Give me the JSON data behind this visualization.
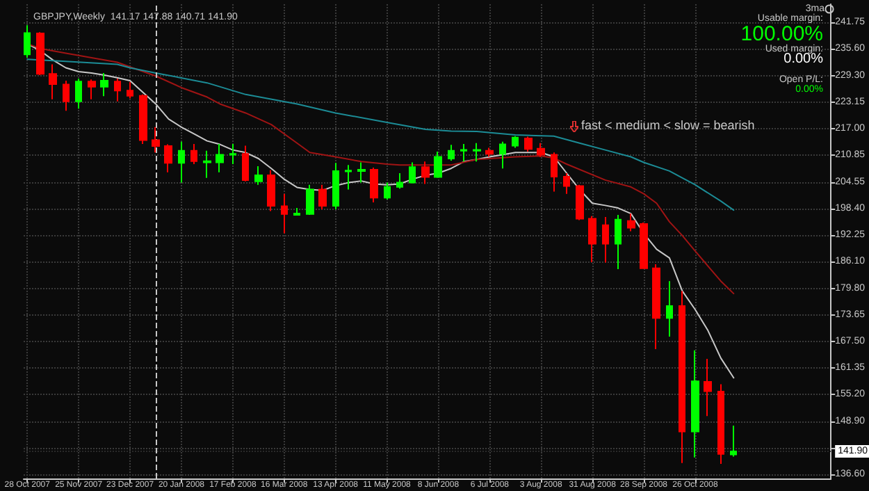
{
  "chart_data": {
    "type": "candlestick",
    "title": "GBPJPY,Weekly  141.17 147.88 140.71 141.90",
    "xlim": [
      "2007-10-26",
      "2009-01-08"
    ],
    "xticks": [
      {
        "value": "2007-10-28",
        "label": "28 Oct 2007"
      },
      {
        "value": "2007-11-25",
        "label": "25 Nov 2007"
      },
      {
        "value": "2007-12-23",
        "label": "23 Dec 2007"
      },
      {
        "value": "2008-01-20",
        "label": "20 Jan 2008"
      },
      {
        "value": "2008-02-17",
        "label": "17 Feb 2008"
      },
      {
        "value": "2008-03-16",
        "label": "16 Mar 2008"
      },
      {
        "value": "2008-04-13",
        "label": "13 Apr 2008"
      },
      {
        "value": "2008-05-11",
        "label": "11 May 2008"
      },
      {
        "value": "2008-06-08",
        "label": "8 Jun 2008"
      },
      {
        "value": "2008-07-06",
        "label": "6 Jul 2008"
      },
      {
        "value": "2008-08-03",
        "label": "3 Aug 2008"
      },
      {
        "value": "2008-08-31",
        "label": "31 Aug 2008"
      },
      {
        "value": "2008-09-28",
        "label": "28 Sep 2008"
      },
      {
        "value": "2008-10-26",
        "label": "26 Oct 2008"
      }
    ],
    "ylim": [
      135.6,
      245.9
    ],
    "yticks": [
      {
        "value": 136.6,
        "label": "136.60"
      },
      {
        "value": 142.75,
        "label": null
      },
      {
        "value": 148.9,
        "label": "148.90"
      },
      {
        "value": 155.2,
        "label": "155.20"
      },
      161.35,
      {
        "value": 167.5,
        "label": "167.50"
      },
      173.65,
      {
        "value": 179.8,
        "label": "179.80"
      },
      {
        "value": 186.1,
        "label": "186.10"
      },
      192.25,
      {
        "value": 198.4,
        "label": "198.40"
      },
      204.55,
      210.85,
      {
        "value": 217,
        "label": "217.00"
      },
      223.15,
      {
        "value": 229.3,
        "label": "229.30"
      },
      {
        "value": 235.6,
        "label": "235.60"
      },
      241.75
    ],
    "grid": true,
    "marker": "none",
    "series": [
      {
        "x": [
          "2007-10-28",
          "2007-11-04",
          "2007-11-11",
          "2007-11-18",
          "2007-11-25",
          "2007-12-02",
          "2007-12-09",
          "2007-12-16",
          "2007-12-23",
          "2007-12-30",
          "2008-01-06",
          "2008-01-13",
          "2008-01-20",
          "2008-01-27",
          "2008-02-03",
          "2008-02-10",
          "2008-02-17",
          "2008-02-24",
          "2008-03-02",
          "2008-03-09",
          "2008-03-16",
          "2008-03-23",
          "2008-03-30",
          "2008-04-06",
          "2008-04-13",
          "2008-04-20",
          "2008-04-27",
          "2008-05-04",
          "2008-05-11",
          "2008-05-18",
          "2008-05-25",
          "2008-06-01",
          "2008-06-08",
          "2008-06-15",
          "2008-06-22",
          "2008-06-29",
          "2008-07-06",
          "2008-07-13",
          "2008-07-20",
          "2008-07-27",
          "2008-08-03",
          "2008-08-10",
          "2008-08-17",
          "2008-08-24",
          "2008-08-31",
          "2008-09-07",
          "2008-09-14",
          "2008-09-21",
          "2008-09-28",
          "2008-10-05",
          "2008-10-12",
          "2008-10-19",
          "2008-10-26",
          "2008-11-02",
          "2008-11-09",
          "2008-11-16"
        ],
        "ohlc": [
          [
            234.2,
            241.0,
            233.5,
            239.2
          ],
          [
            239.1,
            239.4,
            229.4,
            229.7
          ],
          [
            229.7,
            231.9,
            223.8,
            227.3
          ],
          [
            227.2,
            228.1,
            221.1,
            223.3
          ],
          [
            223.3,
            228.6,
            221.6,
            227.9
          ],
          [
            227.9,
            228.4,
            223.8,
            226.7
          ],
          [
            226.7,
            229.9,
            224.5,
            228.1
          ],
          [
            227.9,
            228.6,
            223.3,
            225.8
          ],
          [
            225.8,
            227.8,
            224.0,
            224.6
          ],
          [
            224.6,
            224.9,
            213.4,
            214.3
          ],
          [
            214.3,
            217.3,
            211.4,
            212.9
          ],
          [
            212.9,
            213.3,
            206.8,
            209.0
          ],
          [
            209.0,
            213.9,
            204.4,
            211.8
          ],
          [
            211.8,
            213.4,
            208.7,
            209.4
          ],
          [
            209.1,
            211.8,
            205.5,
            209.4
          ],
          [
            209.1,
            213.4,
            206.8,
            210.9
          ],
          [
            210.9,
            213.4,
            208.7,
            211.1
          ],
          [
            211.1,
            213.0,
            204.7,
            205.0
          ],
          [
            204.7,
            208.2,
            203.9,
            206.1
          ],
          [
            206.1,
            207.3,
            197.8,
            199.0
          ],
          [
            198.9,
            201.8,
            192.6,
            197.1
          ],
          [
            196.9,
            198.5,
            196.8,
            197.2
          ],
          [
            197.1,
            203.9,
            196.9,
            202.8
          ],
          [
            202.8,
            203.9,
            198.2,
            199.0
          ],
          [
            199.0,
            209.0,
            198.2,
            207.1
          ],
          [
            207.0,
            208.5,
            202.8,
            207.2
          ],
          [
            207.1,
            209.1,
            204.4,
            207.4
          ],
          [
            207.4,
            207.9,
            199.8,
            200.9
          ],
          [
            200.9,
            204.4,
            200.5,
            203.4
          ],
          [
            203.4,
            206.6,
            203.0,
            204.4
          ],
          [
            204.4,
            209.1,
            204.2,
            208.0
          ],
          [
            208.0,
            209.3,
            204.1,
            205.7
          ],
          [
            205.7,
            211.6,
            205.5,
            210.4
          ],
          [
            210.0,
            213.2,
            209.5,
            211.8
          ],
          [
            211.8,
            213.4,
            209.3,
            212.0
          ],
          [
            211.8,
            213.6,
            209.3,
            212.0
          ],
          [
            211.8,
            212.5,
            210.4,
            211.1
          ],
          [
            211.1,
            213.9,
            207.7,
            213.3
          ],
          [
            213.0,
            215.2,
            212.5,
            214.9
          ],
          [
            214.7,
            215.1,
            211.6,
            212.2
          ],
          [
            212.3,
            213.6,
            210.4,
            210.9
          ],
          [
            210.9,
            211.4,
            202.3,
            205.8
          ],
          [
            205.8,
            206.6,
            201.8,
            203.6
          ],
          [
            203.6,
            203.9,
            195.7,
            196.0
          ],
          [
            196.0,
            196.6,
            185.9,
            190.2
          ],
          [
            194.5,
            196.4,
            185.8,
            190.2
          ],
          [
            190.2,
            196.9,
            184.3,
            195.8
          ],
          [
            195.5,
            197.2,
            193.1,
            193.9
          ],
          [
            194.8,
            195.1,
            184.5,
            184.5
          ],
          [
            184.5,
            185.4,
            165.7,
            172.9
          ],
          [
            172.9,
            181.5,
            168.6,
            175.7
          ],
          [
            175.7,
            179.2,
            139.2,
            146.5
          ],
          [
            146.5,
            165.4,
            140.5,
            158.2
          ],
          [
            158.1,
            163.4,
            150.1,
            155.9
          ],
          [
            155.8,
            157.5,
            139.0,
            141.3
          ],
          [
            141.17,
            147.88,
            140.71,
            141.9
          ]
        ],
        "colors": [
          "#00ff00",
          "#ff0000",
          "#ff0000",
          "#ff0000",
          "#00ff00",
          "#ff0000",
          "#00ff00",
          "#ff0000",
          "#ff0000",
          "#ff0000",
          "#ff0000",
          "#ff0000",
          "#00ff00",
          "#ff0000",
          "#00ff00",
          "#00ff00",
          "#00ff00",
          "#ff0000",
          "#00ff00",
          "#ff0000",
          "#ff0000",
          "#00ff00",
          "#00ff00",
          "#ff0000",
          "#00ff00",
          "#00ff00",
          "#00ff00",
          "#ff0000",
          "#00ff00",
          "#00ff00",
          "#00ff00",
          "#ff0000",
          "#00ff00",
          "#00ff00",
          "#00ff00",
          "#00ff00",
          "#ff0000",
          "#00ff00",
          "#00ff00",
          "#ff0000",
          "#ff0000",
          "#ff0000",
          "#ff0000",
          "#ff0000",
          "#ff0000",
          "#ff0000",
          "#00ff00",
          "#ff0000",
          "#ff0000",
          "#ff0000",
          "#00ff00",
          "#ff0000",
          "#00ff00",
          "#ff0000",
          "#ff0000",
          "#00ff00"
        ]
      },
      {
        "type": "line",
        "color": "#c8c8c8",
        "x": [
          "2007-10-28",
          "2007-11-04",
          "2007-11-11",
          "2007-11-18",
          "2007-11-25",
          "2007-12-02",
          "2007-12-09",
          "2007-12-16",
          "2007-12-23",
          "2007-12-30",
          "2008-01-06",
          "2008-01-13",
          "2008-01-20",
          "2008-01-27",
          "2008-02-03",
          "2008-02-10",
          "2008-02-17",
          "2008-02-24",
          "2008-03-02",
          "2008-03-09",
          "2008-03-16",
          "2008-03-23",
          "2008-03-30",
          "2008-04-06",
          "2008-04-13",
          "2008-04-20",
          "2008-04-27",
          "2008-05-04",
          "2008-05-11",
          "2008-05-18",
          "2008-05-25",
          "2008-06-01",
          "2008-06-08",
          "2008-06-15",
          "2008-06-22",
          "2008-06-29",
          "2008-07-06",
          "2008-07-13",
          "2008-07-20",
          "2008-07-27",
          "2008-08-03",
          "2008-08-10",
          "2008-08-17",
          "2008-08-24",
          "2008-08-31",
          "2008-09-07",
          "2008-09-14",
          "2008-09-21",
          "2008-09-28",
          "2008-10-05",
          "2008-10-12",
          "2008-10-19",
          "2008-10-26",
          "2008-11-02",
          "2008-11-09",
          "2008-11-16"
        ],
        "values": [
          236.7,
          235.1,
          232.9,
          231.1,
          230.2,
          229.9,
          229.4,
          228.8,
          228.1,
          225.4,
          222.7,
          219.2,
          217.3,
          215.7,
          214.1,
          213.3,
          212.0,
          211.4,
          210.0,
          207.7,
          205.2,
          203.3,
          202.8,
          202.6,
          203.7,
          204.4,
          204.8,
          204.1,
          203.9,
          204.1,
          205.2,
          206.1,
          206.6,
          207.7,
          209.3,
          209.8,
          210.4,
          210.9,
          211.4,
          211.4,
          211.4,
          210.4,
          206.6,
          202.8,
          199.6,
          199.1,
          198.5,
          197.2,
          192.6,
          188.9,
          186.9,
          179.2,
          174.9,
          170.0,
          163.6,
          159.0
        ]
      },
      {
        "type": "line",
        "color": "#a01414",
        "x": [
          "2007-10-28",
          "2007-11-04",
          "2007-11-18",
          "2007-12-16",
          "2007-12-23",
          "2008-01-06",
          "2008-01-20",
          "2008-02-03",
          "2008-02-10",
          "2008-02-24",
          "2008-03-09",
          "2008-03-23",
          "2008-03-30",
          "2008-04-13",
          "2008-04-27",
          "2008-05-11",
          "2008-05-18",
          "2008-06-15",
          "2008-06-29",
          "2008-07-20",
          "2008-08-03",
          "2008-08-10",
          "2008-08-17",
          "2008-09-07",
          "2008-09-21",
          "2008-09-28",
          "2008-10-05",
          "2008-10-12",
          "2008-10-19",
          "2008-10-26",
          "2008-11-02",
          "2008-11-09",
          "2008-11-16"
        ],
        "values": [
          236.7,
          235.6,
          234.5,
          232.4,
          231.3,
          229.2,
          226.5,
          224.3,
          222.7,
          220.6,
          217.9,
          213.6,
          211.4,
          210.4,
          209.3,
          208.7,
          208.5,
          208.5,
          209.8,
          210.4,
          210.6,
          210.1,
          208.7,
          205.0,
          203.4,
          201.8,
          199.6,
          195.3,
          192.1,
          188.5,
          185.0,
          181.5,
          178.6
        ]
      },
      {
        "type": "line",
        "color": "#1c8c96",
        "x": [
          "2007-10-28",
          "2007-11-18",
          "2007-12-16",
          "2007-12-23",
          "2008-01-06",
          "2008-02-03",
          "2008-02-24",
          "2008-03-23",
          "2008-04-13",
          "2008-05-11",
          "2008-06-01",
          "2008-06-15",
          "2008-06-29",
          "2008-07-20",
          "2008-08-10",
          "2008-08-24",
          "2008-09-07",
          "2008-09-21",
          "2008-09-28",
          "2008-10-12",
          "2008-10-26",
          "2008-11-09",
          "2008-11-16"
        ],
        "values": [
          233.1,
          232.6,
          231.9,
          231.1,
          229.9,
          227.6,
          224.9,
          222.7,
          220.6,
          218.4,
          216.8,
          216.4,
          216.3,
          215.5,
          215.2,
          213.6,
          212.0,
          210.4,
          209.1,
          207.1,
          203.9,
          200.1,
          198.0
        ]
      }
    ],
    "ref_lines": [
      {
        "axis": "x",
        "value": "2008-01-06",
        "color": "#c8c8c8",
        "line_style": "dashed"
      },
      {
        "axis": "y",
        "value": 141.9,
        "label": "141.90",
        "color": "#2a2a2a",
        "line_style": "dotted"
      }
    ],
    "annotations": [
      "3ma",
      "Usable margin:",
      "100.00%",
      "Used margin:",
      "0.00%",
      "Open P/L:",
      "0.00%",
      "fast < medium < slow = bearish"
    ]
  }
}
